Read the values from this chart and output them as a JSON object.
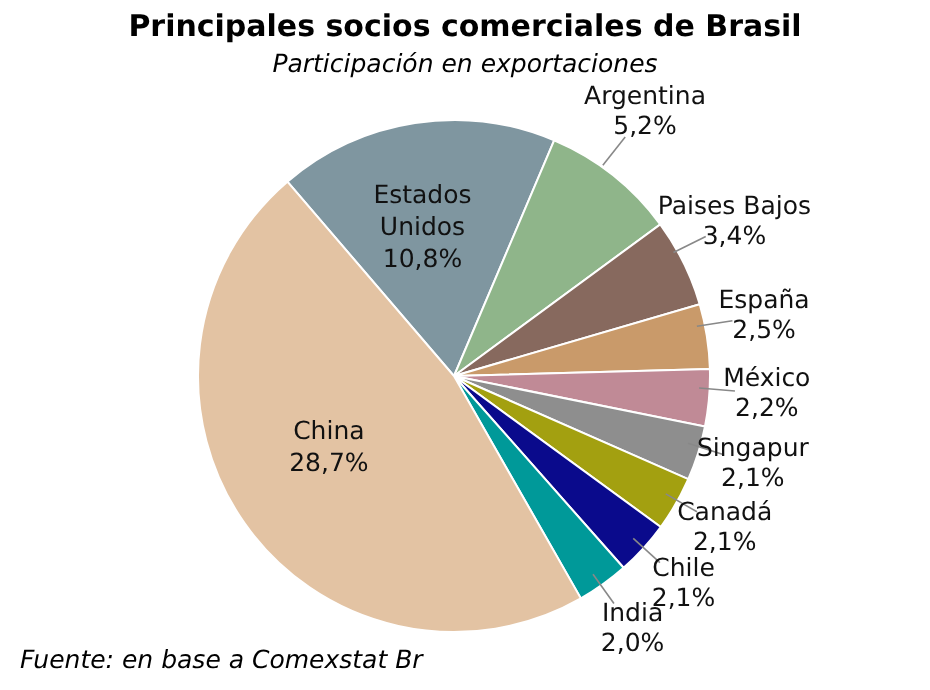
{
  "chart_data": {
    "type": "pie",
    "title": "Principales socios comerciales de Brasil",
    "subtitle": "Participación en exportaciones",
    "categories": [
      "Estados Unidos",
      "Argentina",
      "Paises Bajos",
      "España",
      "México",
      "Singapur",
      "Canadá",
      "Chile",
      "India",
      "China"
    ],
    "values": [
      10.8,
      5.2,
      3.4,
      2.5,
      2.2,
      2.1,
      2.1,
      2.1,
      2.0,
      28.7
    ],
    "value_labels": [
      "10,8%",
      "5,2%",
      "3,4%",
      "2,5%",
      "2,2%",
      "2,1%",
      "2,1%",
      "2,1%",
      "2,0%",
      "28,7%"
    ],
    "colors": [
      "#7f96a0",
      "#8fb58a",
      "#87695e",
      "#c99a6a",
      "#c08a96",
      "#8e8e8e",
      "#a3a010",
      "#0a0a8c",
      "#009999",
      "#e3c3a3"
    ],
    "annotations": [
      "Fuente: en base a Comexstat Br"
    ]
  }
}
